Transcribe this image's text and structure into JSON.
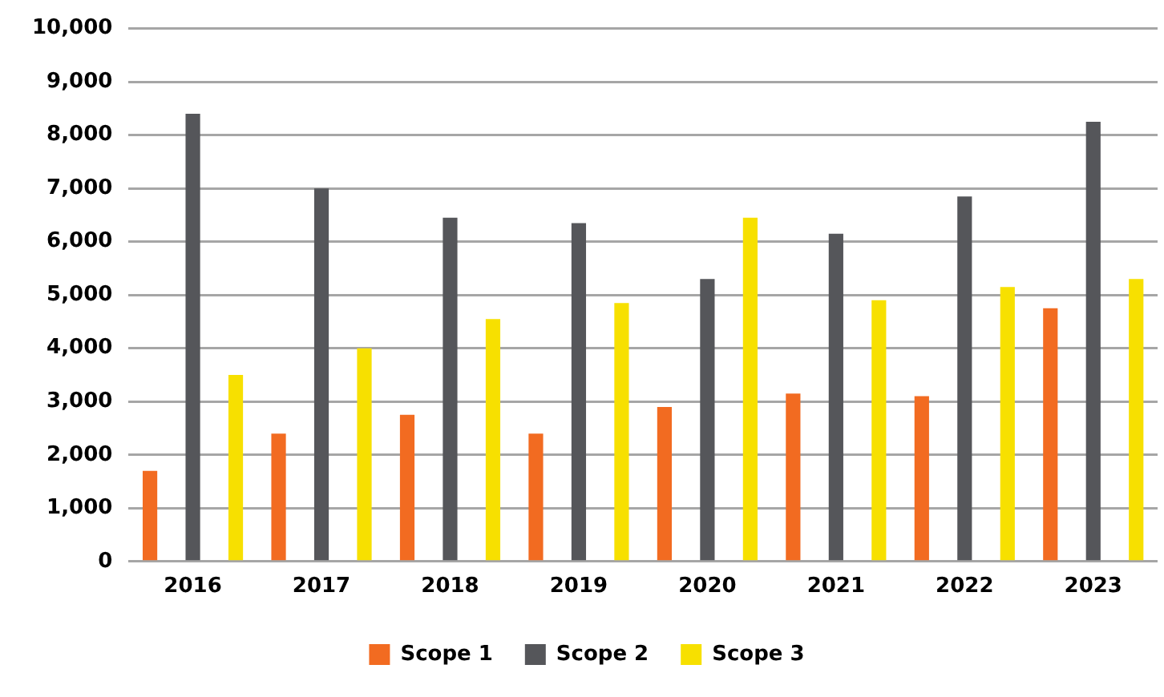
{
  "chart_data": {
    "type": "bar",
    "categories": [
      "2016",
      "2017",
      "2018",
      "2019",
      "2020",
      "2021",
      "2022",
      "2023"
    ],
    "series": [
      {
        "name": "Scope 1",
        "color": "#f26b21",
        "values": [
          1700,
          2400,
          2750,
          2400,
          2900,
          3150,
          3100,
          4750
        ]
      },
      {
        "name": "Scope 2",
        "color": "#55565a",
        "values": [
          8400,
          7000,
          6450,
          6350,
          5300,
          6150,
          6850,
          8250
        ]
      },
      {
        "name": "Scope 3",
        "color": "#f7e000",
        "values": [
          3500,
          4000,
          4550,
          4850,
          6450,
          4900,
          5150,
          5300
        ]
      }
    ],
    "ylim": [
      0,
      10000
    ],
    "yticks": [
      {
        "value": 0,
        "label": "0"
      },
      {
        "value": 1000,
        "label": "1,000"
      },
      {
        "value": 2000,
        "label": "2,000"
      },
      {
        "value": 3000,
        "label": "3,000"
      },
      {
        "value": 4000,
        "label": "4,000"
      },
      {
        "value": 5000,
        "label": "5,000"
      },
      {
        "value": 6000,
        "label": "6,000"
      },
      {
        "value": 7000,
        "label": "7,000"
      },
      {
        "value": 8000,
        "label": "8,000"
      },
      {
        "value": 9000,
        "label": "9,000"
      },
      {
        "value": 10000,
        "label": "10,000"
      }
    ],
    "grid": "y",
    "legend": "bottom"
  }
}
